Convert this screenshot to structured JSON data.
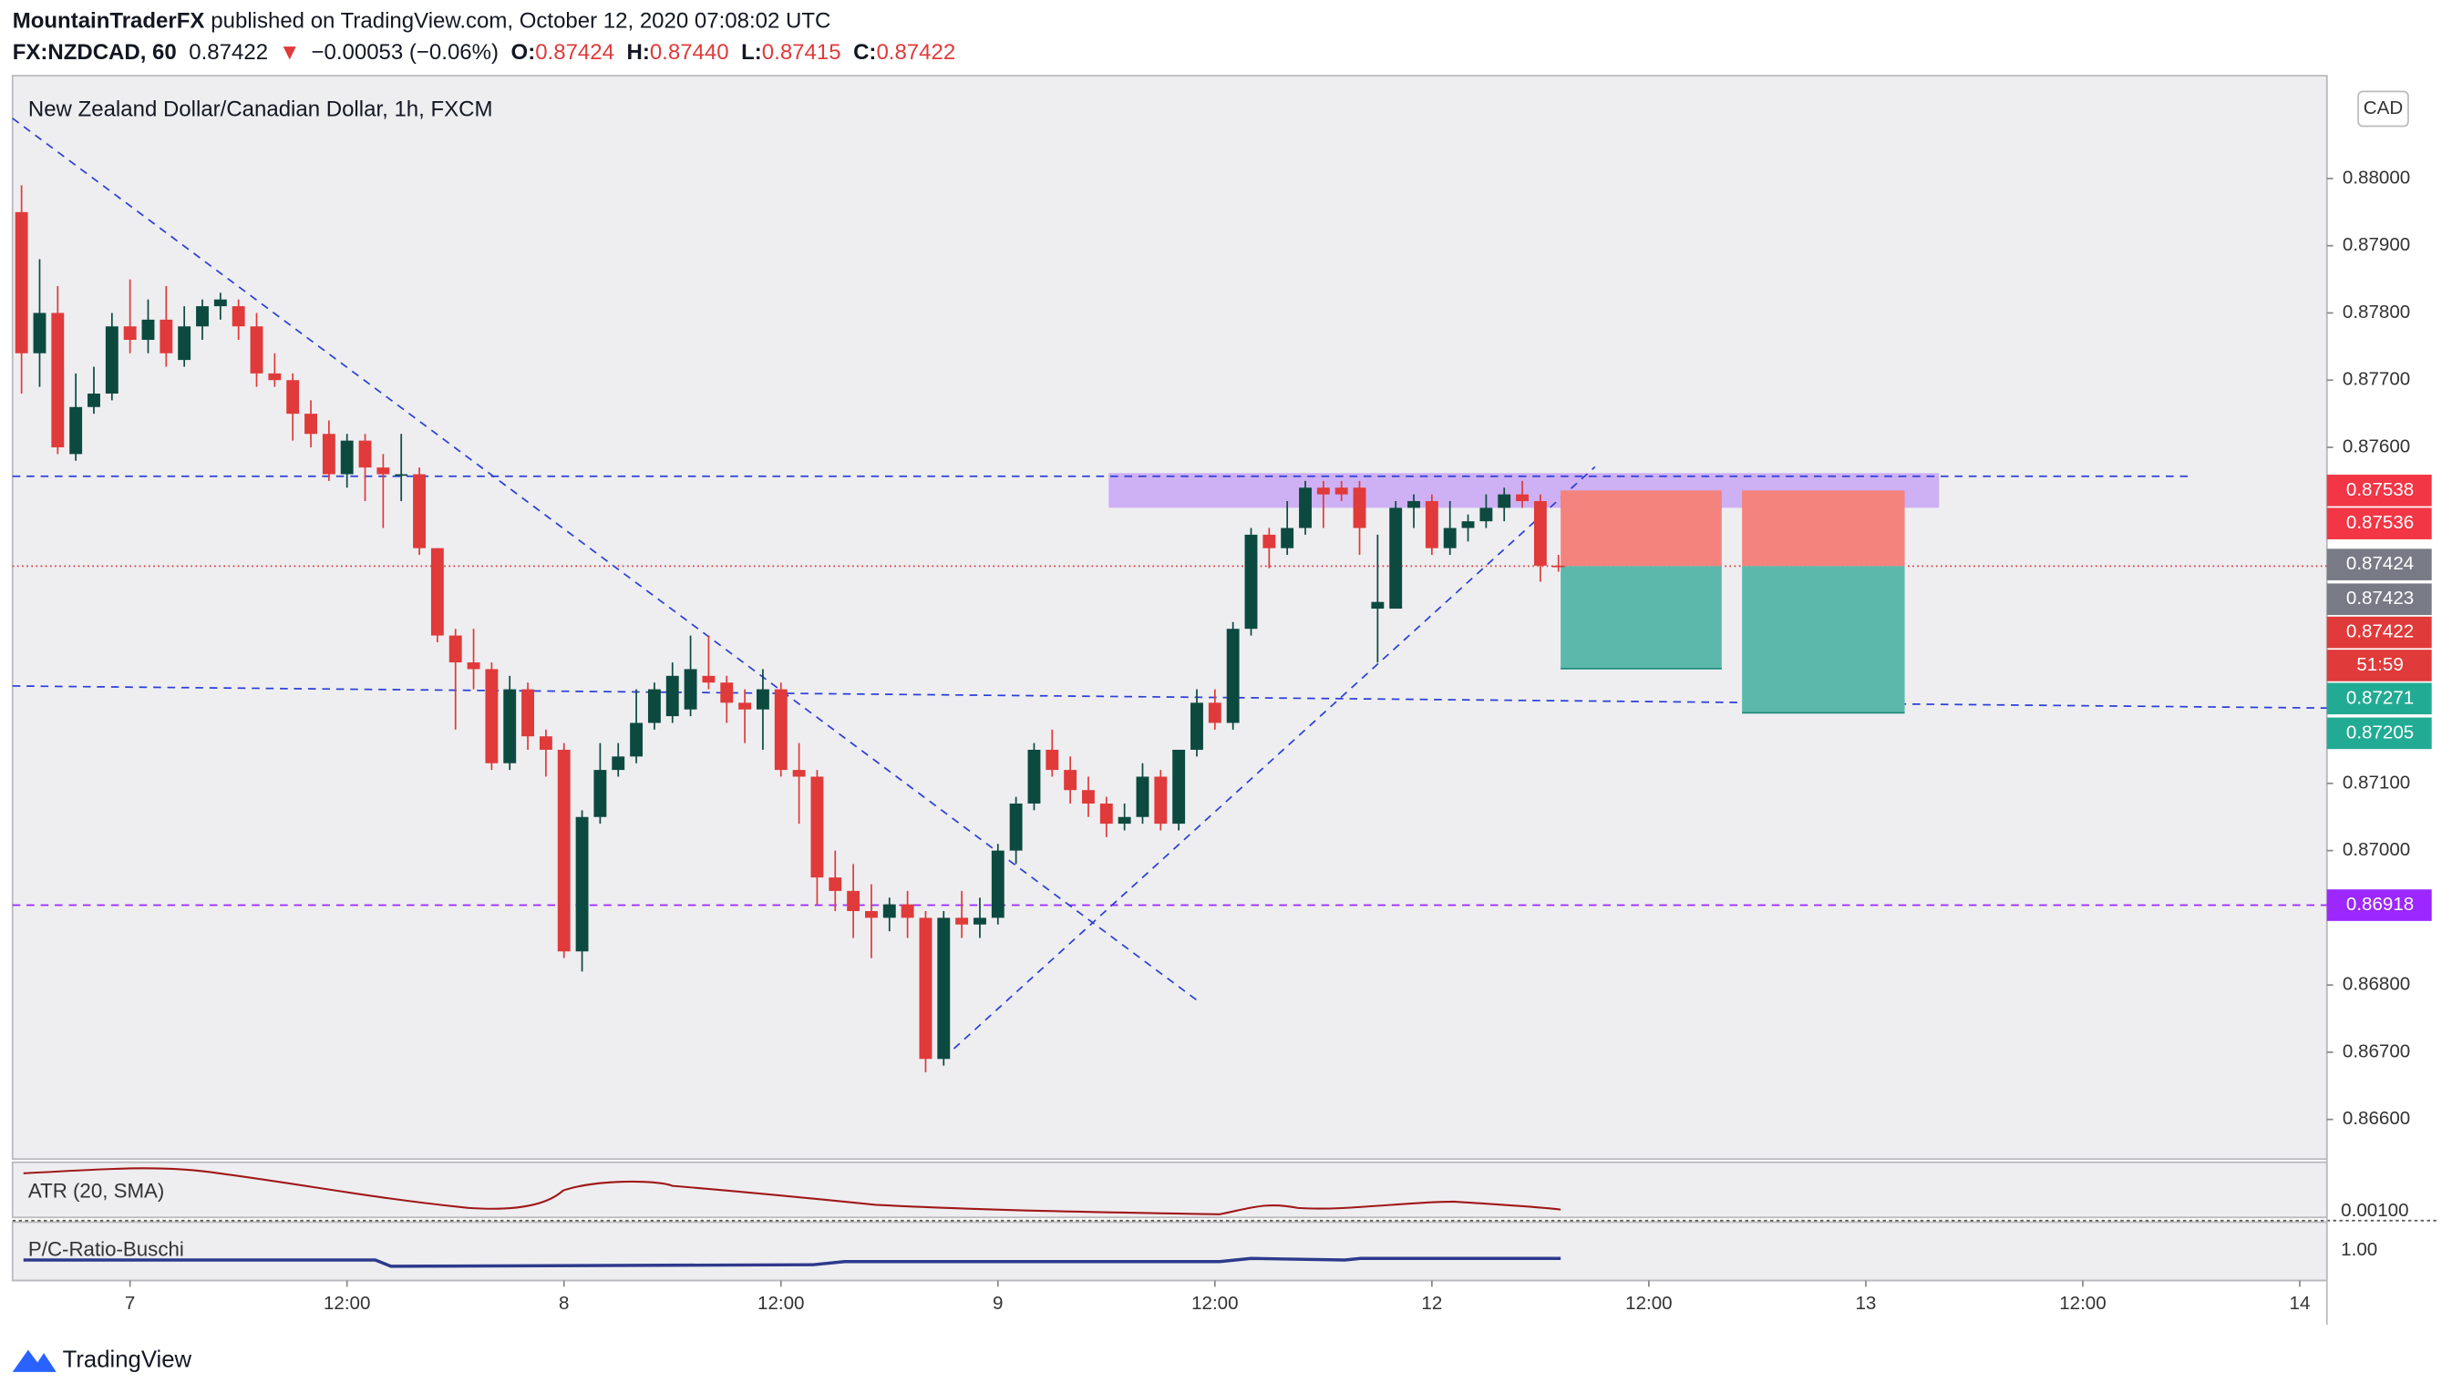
{
  "header": {
    "publisher": "MountainTraderFX",
    "published": "published on TradingView.com, October 12, 2020 07:08:02 UTC",
    "symbol": "FX:NZDCAD, 60",
    "last": "0.87422",
    "arrow": "▼",
    "change": "−0.00053 (−0.06%)",
    "ohlc": [
      {
        "key": "O:",
        "val": "0.87424"
      },
      {
        "key": "H:",
        "val": "0.87440"
      },
      {
        "key": "L:",
        "val": "0.87415"
      },
      {
        "key": "C:",
        "val": "0.87422"
      }
    ]
  },
  "chart_data": {
    "type": "candlestick",
    "title": "New Zealand Dollar/Canadian Dollar, 1h, FXCM",
    "currency": "CAD",
    "up_color": "#0c4a40",
    "down_color": "#e03a3a",
    "ylim": [
      0.86541,
      0.88153
    ],
    "yticks": [
      {
        "value": 0.88,
        "label": "0.88000"
      },
      {
        "value": 0.879,
        "label": "0.87900"
      },
      {
        "value": 0.878,
        "label": "0.87800"
      },
      {
        "value": 0.877,
        "label": "0.87700"
      },
      {
        "value": 0.876,
        "label": "0.87600"
      },
      {
        "value": 0.871,
        "label": "0.87100"
      },
      {
        "value": 0.87,
        "label": "0.87000"
      },
      {
        "value": 0.868,
        "label": "0.86800"
      },
      {
        "value": 0.867,
        "label": "0.86700"
      },
      {
        "value": 0.866,
        "label": "0.86600"
      }
    ],
    "xlim": [
      -0.5,
      127.5
    ],
    "xticks": [
      {
        "value": 6,
        "label": "7"
      },
      {
        "value": 18,
        "label": "12:00"
      },
      {
        "value": 30,
        "label": "8"
      },
      {
        "value": 42,
        "label": "12:00"
      },
      {
        "value": 54,
        "label": "9"
      },
      {
        "value": 66,
        "label": "12:00"
      },
      {
        "value": 78,
        "label": "12"
      },
      {
        "value": 90,
        "label": "12:00"
      },
      {
        "value": 102,
        "label": "13"
      },
      {
        "value": 114,
        "label": "12:00"
      },
      {
        "value": 126,
        "label": "14"
      }
    ],
    "grid": false,
    "candles": [
      [
        0.8795,
        0.8799,
        0.8768,
        0.8774
      ],
      [
        0.8774,
        0.8788,
        0.8769,
        0.878
      ],
      [
        0.878,
        0.8784,
        0.8759,
        0.876
      ],
      [
        0.8759,
        0.8771,
        0.8758,
        0.8766
      ],
      [
        0.8766,
        0.8772,
        0.8765,
        0.8768
      ],
      [
        0.8768,
        0.878,
        0.8767,
        0.8778
      ],
      [
        0.8778,
        0.8785,
        0.8774,
        0.8776
      ],
      [
        0.8776,
        0.8782,
        0.8774,
        0.8779
      ],
      [
        0.8779,
        0.8784,
        0.8772,
        0.8774
      ],
      [
        0.8773,
        0.8781,
        0.8772,
        0.8778
      ],
      [
        0.8778,
        0.8782,
        0.8776,
        0.8781
      ],
      [
        0.8781,
        0.8783,
        0.8779,
        0.8782
      ],
      [
        0.8781,
        0.8782,
        0.8776,
        0.8778
      ],
      [
        0.8778,
        0.878,
        0.8769,
        0.8771
      ],
      [
        0.8771,
        0.8774,
        0.8769,
        0.877
      ],
      [
        0.877,
        0.8771,
        0.8761,
        0.8765
      ],
      [
        0.8765,
        0.8767,
        0.876,
        0.8762
      ],
      [
        0.8762,
        0.8764,
        0.8755,
        0.8756
      ],
      [
        0.8756,
        0.8762,
        0.8754,
        0.8761
      ],
      [
        0.8761,
        0.8762,
        0.8752,
        0.8757
      ],
      [
        0.8757,
        0.8759,
        0.8748,
        0.8756
      ],
      [
        0.8756,
        0.8762,
        0.8752,
        0.8756
      ],
      [
        0.8756,
        0.8757,
        0.8744,
        0.8745
      ],
      [
        0.8745,
        0.8745,
        0.8731,
        0.8732
      ],
      [
        0.8732,
        0.8733,
        0.8718,
        0.8728
      ],
      [
        0.8728,
        0.8733,
        0.8724,
        0.8727
      ],
      [
        0.8727,
        0.8728,
        0.8712,
        0.8713
      ],
      [
        0.8713,
        0.8726,
        0.8712,
        0.8724
      ],
      [
        0.8724,
        0.8725,
        0.8715,
        0.8717
      ],
      [
        0.8717,
        0.8718,
        0.8711,
        0.8715
      ],
      [
        0.8715,
        0.8716,
        0.8684,
        0.8685
      ],
      [
        0.8685,
        0.8706,
        0.8682,
        0.8705
      ],
      [
        0.8705,
        0.8716,
        0.8704,
        0.8712
      ],
      [
        0.8712,
        0.8716,
        0.8711,
        0.8714
      ],
      [
        0.8714,
        0.8724,
        0.8713,
        0.8719
      ],
      [
        0.8719,
        0.8725,
        0.8718,
        0.8724
      ],
      [
        0.872,
        0.8728,
        0.8719,
        0.8726
      ],
      [
        0.8721,
        0.8732,
        0.872,
        0.8727
      ],
      [
        0.8726,
        0.8732,
        0.8724,
        0.8725
      ],
      [
        0.8725,
        0.8726,
        0.8719,
        0.8722
      ],
      [
        0.8722,
        0.8724,
        0.8716,
        0.8721
      ],
      [
        0.8721,
        0.8727,
        0.8715,
        0.8724
      ],
      [
        0.8724,
        0.8725,
        0.8711,
        0.8712
      ],
      [
        0.8712,
        0.8716,
        0.8704,
        0.8711
      ],
      [
        0.8711,
        0.8712,
        0.8692,
        0.8696
      ],
      [
        0.8696,
        0.87,
        0.8691,
        0.8694
      ],
      [
        0.8694,
        0.8698,
        0.8687,
        0.8691
      ],
      [
        0.8691,
        0.8695,
        0.8684,
        0.869
      ],
      [
        0.869,
        0.8693,
        0.8688,
        0.8692
      ],
      [
        0.8692,
        0.8694,
        0.8687,
        0.869
      ],
      [
        0.869,
        0.8691,
        0.8667,
        0.8669
      ],
      [
        0.8669,
        0.8691,
        0.8668,
        0.869
      ],
      [
        0.869,
        0.8694,
        0.8687,
        0.8689
      ],
      [
        0.8689,
        0.8693,
        0.8687,
        0.869
      ],
      [
        0.869,
        0.8701,
        0.8689,
        0.87
      ],
      [
        0.87,
        0.8708,
        0.8698,
        0.8707
      ],
      [
        0.8707,
        0.8716,
        0.8706,
        0.8715
      ],
      [
        0.8715,
        0.8718,
        0.8711,
        0.8712
      ],
      [
        0.8712,
        0.8714,
        0.8707,
        0.8709
      ],
      [
        0.8709,
        0.8711,
        0.8705,
        0.8707
      ],
      [
        0.8707,
        0.8708,
        0.8702,
        0.8704
      ],
      [
        0.8704,
        0.8707,
        0.8703,
        0.8705
      ],
      [
        0.8705,
        0.8713,
        0.8704,
        0.8711
      ],
      [
        0.8711,
        0.8712,
        0.8703,
        0.8704
      ],
      [
        0.8704,
        0.8715,
        0.8703,
        0.8715
      ],
      [
        0.8715,
        0.8724,
        0.8714,
        0.8722
      ],
      [
        0.8722,
        0.8724,
        0.8718,
        0.8719
      ],
      [
        0.8719,
        0.8734,
        0.8718,
        0.8733
      ],
      [
        0.8733,
        0.8748,
        0.8732,
        0.8747
      ],
      [
        0.8747,
        0.8748,
        0.8742,
        0.8745
      ],
      [
        0.8745,
        0.8752,
        0.8744,
        0.8748
      ],
      [
        0.8748,
        0.8755,
        0.8747,
        0.8754
      ],
      [
        0.8754,
        0.8755,
        0.8748,
        0.8753
      ],
      [
        0.8754,
        0.8755,
        0.8752,
        0.8753
      ],
      [
        0.8754,
        0.8755,
        0.8744,
        0.8748
      ],
      [
        0.8736,
        0.8747,
        0.8728,
        0.8737
      ],
      [
        0.8736,
        0.8752,
        0.8736,
        0.8751
      ],
      [
        0.8751,
        0.8753,
        0.8748,
        0.8752
      ],
      [
        0.8752,
        0.8753,
        0.8744,
        0.8745
      ],
      [
        0.8745,
        0.8752,
        0.8744,
        0.8748
      ],
      [
        0.8748,
        0.875,
        0.8746,
        0.8749
      ],
      [
        0.8749,
        0.8753,
        0.8748,
        0.8751
      ],
      [
        0.8751,
        0.8754,
        0.8749,
        0.8753
      ],
      [
        0.8753,
        0.8755,
        0.8751,
        0.8752
      ],
      [
        0.8752,
        0.8753,
        0.874,
        0.87424
      ],
      [
        0.87424,
        0.8744,
        0.87415,
        0.87422
      ]
    ],
    "price_labels": [
      {
        "text": "0.87538",
        "color": "#f23645"
      },
      {
        "text": "0.87536",
        "color": "#f23645"
      },
      {
        "text": "0.87424",
        "color": "#787b86"
      },
      {
        "text": "0.87423",
        "color": "#787b86"
      },
      {
        "text": "0.87422",
        "color": "#e03a3a"
      },
      {
        "text": "51:59",
        "color": "#e03a3a"
      },
      {
        "text": "0.87271",
        "color": "#22ab94"
      },
      {
        "text": "0.87205",
        "color": "#22ab94"
      },
      {
        "text": "0.86918",
        "color": "#9c27ff"
      }
    ],
    "indicators": [
      {
        "name": "ATR (20, SMA)",
        "value_label": "0.00100"
      },
      {
        "name": "P/C-Ratio-Buschi",
        "value_label": "1.00"
      }
    ]
  },
  "footer": {
    "brand": "TradingView"
  }
}
